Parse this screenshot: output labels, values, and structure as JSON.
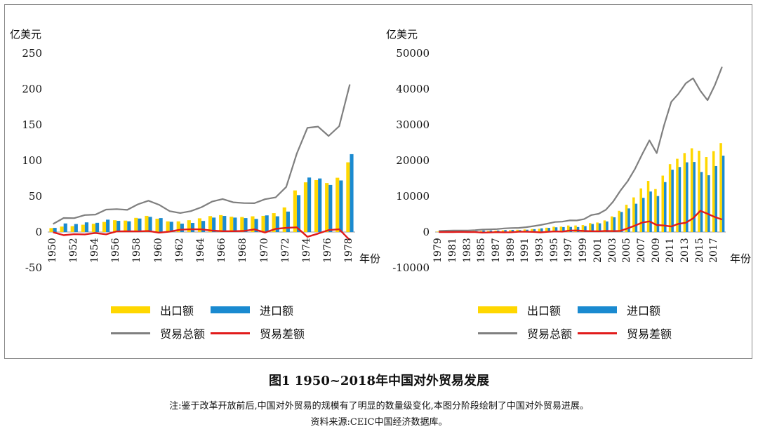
{
  "figure": {
    "title": "图1  1950~2018年中国对外贸易发展",
    "note": "注:鉴于改革开放前后,中国对外贸易的规模有了明显的数量级变化,本图分阶段绘制了中国对外贸易进展。",
    "source": "资料来源:CEIC中国经济数据库。"
  },
  "colors": {
    "export": "#FFD700",
    "import": "#1A8AD0",
    "total": "#7F7F7F",
    "balance": "#E11B1B"
  },
  "chart_data": [
    {
      "type": "bar+line",
      "ylabel": "亿美元",
      "xlabel": "年份",
      "ylim": [
        -50,
        250
      ],
      "yticks": [
        -50,
        0,
        50,
        100,
        150,
        200,
        250
      ],
      "x": [
        1950,
        1951,
        1952,
        1953,
        1954,
        1955,
        1956,
        1957,
        1958,
        1959,
        1960,
        1961,
        1962,
        1963,
        1964,
        1965,
        1966,
        1967,
        1968,
        1969,
        1970,
        1971,
        1972,
        1973,
        1974,
        1975,
        1976,
        1977,
        1978
      ],
      "xtick_labels": [
        "1950",
        "1952",
        "1954",
        "1956",
        "1958",
        "1960",
        "1962",
        "1964",
        "1966",
        "1968",
        "1970",
        "1972",
        "1974",
        "1976",
        "1978"
      ],
      "series": [
        {
          "name": "出口额",
          "kind": "bar",
          "values": [
            5.5,
            7.6,
            8.2,
            10.2,
            11.5,
            14.1,
            16.5,
            16.0,
            19.8,
            22.6,
            18.6,
            14.9,
            14.9,
            16.5,
            19.2,
            22.3,
            23.7,
            21.4,
            21.0,
            22.0,
            22.6,
            26.4,
            34.4,
            58.2,
            69.5,
            72.6,
            68.5,
            75.9,
            97.5
          ]
        },
        {
          "name": "进口额",
          "kind": "bar",
          "values": [
            5.8,
            12.0,
            11.2,
            13.5,
            12.9,
            17.3,
            15.6,
            15.0,
            18.9,
            21.2,
            19.5,
            14.3,
            11.7,
            12.7,
            15.5,
            20.2,
            22.5,
            20.2,
            19.5,
            18.3,
            23.3,
            22.0,
            28.6,
            51.6,
            76.2,
            74.9,
            65.8,
            72.1,
            108.9
          ]
        },
        {
          "name": "贸易总额",
          "kind": "line",
          "values": [
            11.3,
            19.6,
            19.4,
            23.7,
            24.4,
            31.4,
            32.1,
            31.0,
            38.7,
            43.8,
            38.1,
            29.2,
            26.6,
            29.2,
            34.7,
            42.5,
            46.2,
            41.6,
            40.5,
            40.3,
            45.9,
            48.4,
            63.0,
            109.8,
            145.7,
            147.5,
            134.3,
            148.0,
            206.4
          ]
        },
        {
          "name": "贸易差额",
          "kind": "line",
          "values": [
            -0.3,
            -4.4,
            -3.0,
            -3.3,
            -1.4,
            -3.2,
            0.9,
            1.0,
            0.9,
            1.4,
            -0.9,
            0.6,
            3.2,
            3.8,
            3.7,
            2.1,
            1.2,
            1.2,
            1.5,
            3.7,
            -0.7,
            4.4,
            5.8,
            6.6,
            -6.7,
            -2.3,
            2.7,
            3.8,
            -11.4
          ]
        }
      ]
    },
    {
      "type": "bar+line",
      "ylabel": "亿美元",
      "xlabel": "年份",
      "ylim": [
        -10000,
        50000
      ],
      "yticks": [
        -10000,
        0,
        10000,
        20000,
        30000,
        40000,
        50000
      ],
      "x": [
        1979,
        1980,
        1981,
        1982,
        1983,
        1984,
        1985,
        1986,
        1987,
        1988,
        1989,
        1990,
        1991,
        1992,
        1993,
        1994,
        1995,
        1996,
        1997,
        1998,
        1999,
        2000,
        2001,
        2002,
        2003,
        2004,
        2005,
        2006,
        2007,
        2008,
        2009,
        2010,
        2011,
        2012,
        2013,
        2014,
        2015,
        2016,
        2017,
        2018
      ],
      "xtick_labels": [
        "1979",
        "1981",
        "1983",
        "1985",
        "1987",
        "1989",
        "1991",
        "1993",
        "1995",
        "1997",
        "1999",
        "2001",
        "2003",
        "2005",
        "2007",
        "2009",
        "2011",
        "2013",
        "2015",
        "2017"
      ],
      "series": [
        {
          "name": "出口额",
          "kind": "bar",
          "values": [
            137,
            181,
            220,
            223,
            222,
            261,
            274,
            309,
            395,
            475,
            525,
            621,
            719,
            849,
            917,
            1210,
            1488,
            1511,
            1828,
            1837,
            1949,
            2492,
            2661,
            3256,
            4382,
            5933,
            7620,
            9689,
            12205,
            14307,
            12016,
            15778,
            18984,
            20487,
            22090,
            23423,
            22735,
            20976,
            22633,
            24867
          ]
        },
        {
          "name": "进口额",
          "kind": "bar",
          "values": [
            157,
            200,
            220,
            193,
            214,
            274,
            423,
            429,
            432,
            553,
            591,
            534,
            638,
            806,
            1040,
            1156,
            1321,
            1388,
            1424,
            1402,
            1657,
            2251,
            2436,
            2952,
            4128,
            5612,
            6600,
            7915,
            9561,
            11326,
            10059,
            13962,
            17435,
            18184,
            19500,
            19592,
            16796,
            15879,
            18438,
            21358
          ]
        },
        {
          "name": "贸易总额",
          "kind": "line",
          "values": [
            294,
            381,
            440,
            416,
            436,
            535,
            696,
            738,
            827,
            1028,
            1116,
            1154,
            1357,
            1655,
            1957,
            2366,
            2809,
            2899,
            3252,
            3239,
            3606,
            4743,
            5097,
            6208,
            8510,
            11546,
            14219,
            17604,
            21766,
            25633,
            22075,
            29740,
            36419,
            38671,
            41590,
            43015,
            39531,
            36855,
            41071,
            46224
          ]
        },
        {
          "name": "贸易差额",
          "kind": "line",
          "values": [
            -20,
            -19,
            0,
            30,
            8,
            -13,
            -149,
            -120,
            -37,
            -78,
            -66,
            87,
            81,
            43,
            -123,
            54,
            167,
            122,
            404,
            435,
            292,
            241,
            225,
            304,
            255,
            321,
            1020,
            1775,
            2644,
            2981,
            1957,
            1815,
            1549,
            2303,
            2590,
            3831,
            5939,
            5097,
            4195,
            3509
          ]
        }
      ]
    }
  ]
}
